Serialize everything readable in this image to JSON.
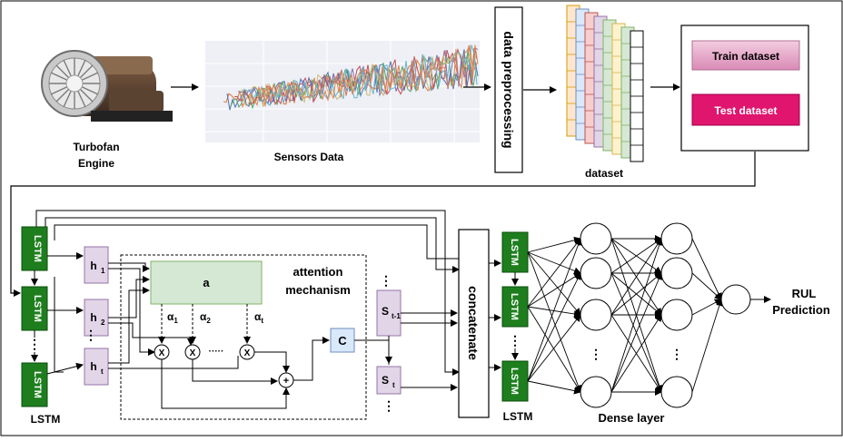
{
  "top": {
    "engine_label_1": "Turbofan",
    "engine_label_2": "Engine",
    "sensors_label": "Sensors Data",
    "preprocess_label": "data preprocessing",
    "dataset_label": "dataset",
    "train_label": "Train dataset",
    "test_label": "Test dataset"
  },
  "bottom": {
    "lstm_short": "LSTM",
    "lstm_label": "LSTM",
    "h1": "h",
    "h1_sub": "1",
    "h2": "h",
    "h2_sub": "2",
    "ht": "h",
    "ht_sub": "t",
    "dots": "⋮",
    "attention_a": "a",
    "attention_title_1": "attention",
    "attention_title_2": "mechanism",
    "alpha": "α",
    "alpha1_sub": "1",
    "alpha2_sub": "2",
    "alphat_sub": "t",
    "multiply": "X",
    "plus": "+",
    "hdots": "·····",
    "context": "C",
    "st1": "S",
    "st1_sub": "t-1",
    "st": "S",
    "st_sub": "t",
    "concat_label": "concatenate",
    "dense_label": "Dense layer",
    "rul_1": "RUL",
    "rul_2": "Prediction"
  },
  "colors": {
    "lstm_green": "#1e7e1e",
    "lavender": "#e1d5e7",
    "lavender_border": "#9673a6",
    "attention_green": "#d5e8d4",
    "attention_border": "#82b366",
    "context_blue": "#dae8fc",
    "context_border": "#6c8ebf",
    "train_pink": "#e6a3c8",
    "test_magenta": "#e0156e"
  }
}
